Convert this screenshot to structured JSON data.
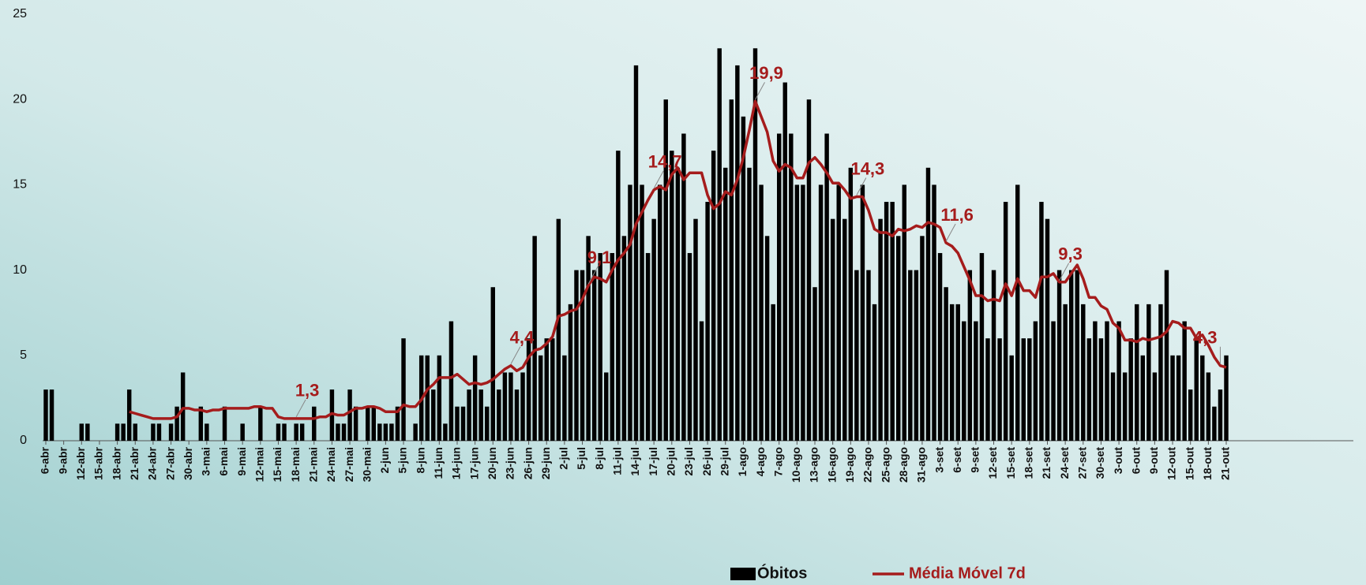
{
  "chart_data": {
    "type": "bar_line",
    "categories": [
      "6-abr",
      null,
      null,
      "9-abr",
      null,
      null,
      "12-abr",
      null,
      null,
      "15-abr",
      null,
      null,
      "18-abr",
      null,
      null,
      "21-abr",
      null,
      null,
      "24-abr",
      null,
      null,
      "27-abr",
      null,
      null,
      "30-abr",
      null,
      null,
      "3-mai",
      null,
      null,
      "6-mai",
      null,
      null,
      "9-mai",
      null,
      null,
      "12-mai",
      null,
      null,
      "15-mai",
      null,
      null,
      "18-mai",
      null,
      null,
      "21-mai",
      null,
      null,
      "24-mai",
      null,
      null,
      "27-mai",
      null,
      null,
      "30-mai",
      null,
      null,
      "2-jun",
      null,
      null,
      "5-jun",
      null,
      null,
      "8-jun",
      null,
      null,
      "11-jun",
      null,
      null,
      "14-jun",
      null,
      null,
      "17-jun",
      null,
      null,
      "20-jun",
      null,
      null,
      "23-jun",
      null,
      null,
      "26-jun",
      null,
      null,
      "29-jun",
      null,
      null,
      "2-jul",
      null,
      null,
      "5-jul",
      null,
      null,
      "8-jul",
      null,
      null,
      "11-jul",
      null,
      null,
      "14-jul",
      null,
      null,
      "17-jul",
      null,
      null,
      "20-jul",
      null,
      null,
      "23-jul",
      null,
      null,
      "26-jul",
      null,
      null,
      "29-jul",
      null,
      null,
      "1-ago",
      null,
      null,
      "4-ago",
      null,
      null,
      "7-ago",
      null,
      null,
      "10-ago",
      null,
      null,
      "13-ago",
      null,
      null,
      "16-ago",
      null,
      null,
      "19-ago",
      null,
      null,
      "22-ago",
      null,
      null,
      "25-ago",
      null,
      null,
      "28-ago",
      null,
      null,
      "31-ago",
      null,
      null,
      "3-set",
      null,
      null,
      "6-set",
      null,
      null,
      "9-set",
      null,
      null,
      "12-set",
      null,
      null,
      "15-set",
      null,
      null,
      "18-set",
      null,
      null,
      "21-set",
      null,
      null,
      "24-set",
      null,
      null,
      "27-set",
      null,
      null,
      "30-set",
      null,
      null,
      "3-out",
      null,
      null,
      "6-out",
      null,
      null,
      "9-out",
      null,
      null,
      "12-out",
      null,
      null,
      "15-out",
      null,
      null,
      "18-out",
      null,
      null,
      "21-out"
    ],
    "series": [
      {
        "name": "Óbitos",
        "kind": "bar",
        "color": "#000000",
        "values": [
          3,
          3,
          0,
          0,
          0,
          0,
          1,
          1,
          0,
          0,
          0,
          0,
          1,
          1,
          3,
          1,
          0,
          0,
          1,
          1,
          0,
          1,
          2,
          4,
          0,
          0,
          2,
          1,
          0,
          0,
          2,
          0,
          0,
          1,
          0,
          0,
          2,
          0,
          0,
          1,
          1,
          0,
          1,
          1,
          0,
          2,
          0,
          0,
          3,
          1,
          1,
          3,
          2,
          0,
          2,
          2,
          1,
          1,
          1,
          2,
          6,
          0,
          1,
          5,
          5,
          3,
          5,
          1,
          7,
          2,
          2,
          3,
          5,
          3,
          2,
          9,
          3,
          4,
          4,
          3,
          4,
          6,
          12,
          5,
          6,
          6,
          13,
          5,
          8,
          10,
          10,
          12,
          10,
          11,
          4,
          11,
          17,
          12,
          15,
          22,
          15,
          11,
          13,
          15,
          20,
          17,
          16,
          18,
          11,
          13,
          7,
          14,
          17,
          23,
          16,
          20,
          22,
          19,
          16,
          23,
          15,
          12,
          8,
          18,
          21,
          18,
          15,
          15,
          20,
          9,
          15,
          18,
          13,
          15,
          13,
          16,
          10,
          15,
          10,
          8,
          13,
          14,
          14,
          12,
          15,
          10,
          10,
          12,
          16,
          15,
          11,
          9,
          8,
          8,
          7,
          10,
          7,
          11,
          6,
          10,
          6,
          14,
          5,
          15,
          6,
          6,
          7,
          14,
          13,
          7,
          10,
          8,
          10,
          10,
          8,
          6,
          7,
          6,
          7,
          4,
          7,
          4,
          6,
          8,
          5,
          8,
          4,
          8,
          10,
          5,
          5,
          7,
          3,
          6,
          5,
          4,
          2,
          3,
          5
        ]
      },
      {
        "name": "Média Móvel 7d",
        "kind": "line",
        "color": "#a51c1c",
        "values": [
          null,
          null,
          null,
          null,
          null,
          null,
          null,
          null,
          null,
          null,
          null,
          null,
          null,
          null,
          1.7,
          1.6,
          1.5,
          1.4,
          1.3,
          1.3,
          1.3,
          1.3,
          1.4,
          1.9,
          1.9,
          1.8,
          1.8,
          1.7,
          1.8,
          1.8,
          1.9,
          1.9,
          1.9,
          1.9,
          1.9,
          2.0,
          2.0,
          1.9,
          1.9,
          1.4,
          1.3,
          1.3,
          1.3,
          1.3,
          1.3,
          1.3,
          1.4,
          1.4,
          1.6,
          1.5,
          1.5,
          1.7,
          1.9,
          1.9,
          2.0,
          2.0,
          1.9,
          1.7,
          1.7,
          1.7,
          2.1,
          2.0,
          2.0,
          2.4,
          3.0,
          3.3,
          3.7,
          3.7,
          3.7,
          3.9,
          3.6,
          3.3,
          3.4,
          3.3,
          3.4,
          3.6,
          3.9,
          4.2,
          4.4,
          4.1,
          4.3,
          4.9,
          5.3,
          5.4,
          5.7,
          6.1,
          7.3,
          7.4,
          7.6,
          7.7,
          8.3,
          9.1,
          9.6,
          9.5,
          9.3,
          10.0,
          10.6,
          11.0,
          11.5,
          12.7,
          13.4,
          14.1,
          14.7,
          14.9,
          14.7,
          15.6,
          16.0,
          15.3,
          15.7,
          15.7,
          15.7,
          14.4,
          13.6,
          13.9,
          14.6,
          14.4,
          15.3,
          16.6,
          18.2,
          19.9,
          19.0,
          18.1,
          16.4,
          15.8,
          16.2,
          16.0,
          15.4,
          15.4,
          16.3,
          16.6,
          16.2,
          15.7,
          15.1,
          15.1,
          14.7,
          14.2,
          14.3,
          14.3,
          13.5,
          12.4,
          12.2,
          12.2,
          12.0,
          12.4,
          12.3,
          12.4,
          12.6,
          12.5,
          12.8,
          12.7,
          12.5,
          11.6,
          11.4,
          11.0,
          10.2,
          9.4,
          8.5,
          8.5,
          8.2,
          8.3,
          8.2,
          9.2,
          8.5,
          9.5,
          8.8,
          8.8,
          8.4,
          9.6,
          9.6,
          9.8,
          9.3,
          9.3,
          9.8,
          10.3,
          9.5,
          8.4,
          8.4,
          7.9,
          7.7,
          6.9,
          6.6,
          5.9,
          5.9,
          5.8,
          6.0,
          5.9,
          6.0,
          6.1,
          6.4,
          7.0,
          6.9,
          6.6,
          6.6,
          6.0,
          6.2,
          5.6,
          4.9,
          4.4,
          4.3
        ],
        "value_labels": [
          null,
          null,
          null,
          null,
          null,
          null,
          null,
          null,
          null,
          null,
          null,
          null,
          null,
          null,
          null,
          null,
          null,
          null,
          null,
          null,
          null,
          null,
          null,
          null,
          null,
          null,
          null,
          null,
          null,
          null,
          null,
          null,
          null,
          null,
          null,
          null,
          null,
          null,
          null,
          null,
          null,
          null,
          "1,3",
          null,
          null,
          null,
          null,
          null,
          null,
          null,
          null,
          null,
          null,
          null,
          null,
          null,
          null,
          null,
          null,
          null,
          null,
          null,
          null,
          null,
          null,
          null,
          null,
          null,
          null,
          null,
          null,
          null,
          null,
          null,
          null,
          null,
          null,
          null,
          "4,4",
          null,
          null,
          null,
          null,
          null,
          null,
          null,
          null,
          null,
          null,
          null,
          null,
          "9,1",
          null,
          null,
          null,
          null,
          null,
          null,
          null,
          null,
          null,
          null,
          "14,7",
          null,
          null,
          null,
          null,
          null,
          null,
          null,
          null,
          null,
          null,
          null,
          null,
          null,
          null,
          null,
          null,
          "19,9",
          null,
          null,
          null,
          null,
          null,
          null,
          null,
          null,
          null,
          null,
          null,
          null,
          null,
          null,
          null,
          null,
          "14,3",
          null,
          null,
          null,
          null,
          null,
          null,
          null,
          null,
          null,
          null,
          null,
          null,
          null,
          null,
          "11,6",
          null,
          null,
          null,
          null,
          null,
          null,
          null,
          null,
          null,
          null,
          null,
          null,
          null,
          null,
          null,
          null,
          null,
          null,
          "9,3",
          null,
          null,
          null,
          null,
          null,
          null,
          null,
          null,
          null,
          null,
          null,
          null,
          null,
          null,
          null,
          null,
          null,
          null,
          null,
          null,
          null,
          null,
          null,
          null,
          null,
          null,
          "4,3"
        ]
      }
    ],
    "ylim": [
      0,
      25
    ],
    "yticks": [
      0,
      5,
      10,
      15,
      20,
      25
    ],
    "grid": false,
    "legend": "bottom"
  }
}
